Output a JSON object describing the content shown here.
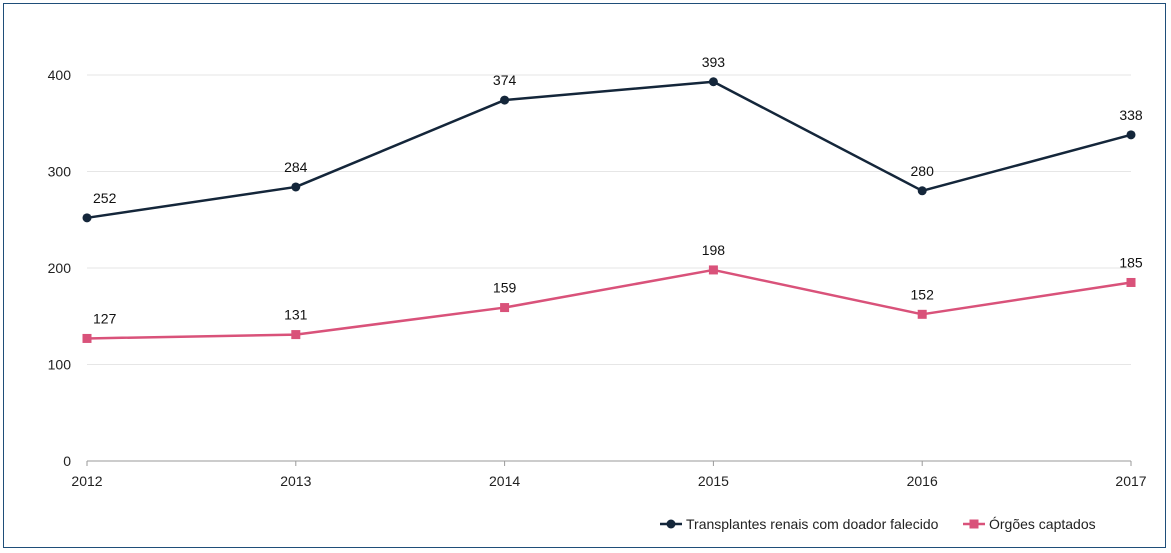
{
  "chart_data": {
    "type": "line",
    "title": "",
    "xlabel": "",
    "ylabel": "",
    "categories": [
      "2012",
      "2013",
      "2014",
      "2015",
      "2016",
      "2017"
    ],
    "ylim": [
      0,
      400
    ],
    "yticks": [
      0,
      100,
      200,
      300,
      400
    ],
    "grid": true,
    "legend_position": "bottom-right",
    "series": [
      {
        "name": "Transplantes renais com doador falecido",
        "values": [
          252,
          284,
          374,
          393,
          280,
          338
        ],
        "color": "#14263a",
        "marker": "circle"
      },
      {
        "name": "Órgões captados",
        "values": [
          127,
          131,
          159,
          198,
          152,
          185
        ],
        "color": "#d9527a",
        "marker": "square"
      }
    ]
  }
}
